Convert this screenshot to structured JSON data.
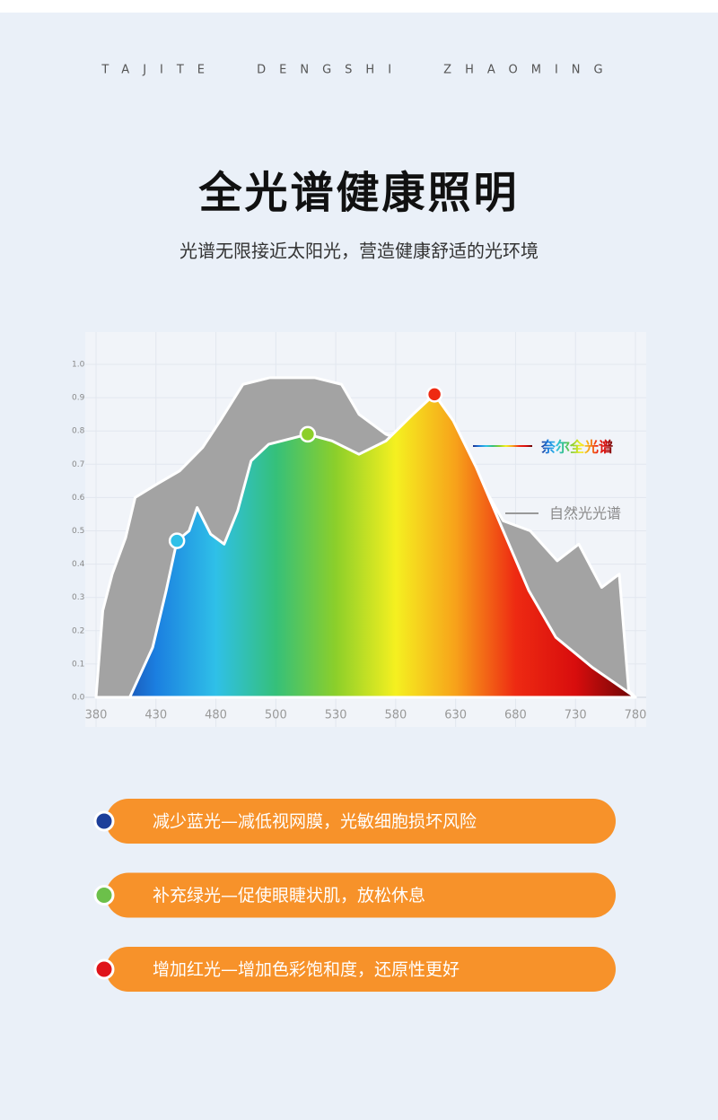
{
  "header": {
    "tagline": "TAJITE DENGSHI ZHAOMING",
    "title": "全光谱健康照明",
    "subtitle": "光谱无限接近太阳光，营造健康舒适的光环境"
  },
  "chart_data": {
    "type": "area",
    "xlim": [
      380,
      780
    ],
    "x_axis_labels": [
      380,
      430,
      480,
      500,
      530,
      580,
      630,
      680,
      730,
      780
    ],
    "ylim": [
      0,
      1
    ],
    "yticks": [
      {
        "value": 0,
        "label": "0.0"
      },
      0.1,
      0.2,
      0.3,
      0.4,
      0.5,
      0.6,
      0.7,
      0.8,
      0.9,
      {
        "value": 1,
        "label": "1.0"
      }
    ],
    "grid": true,
    "series": [
      {
        "name": "自然光光谱",
        "color": "#a3a3a3",
        "x": [
          380,
          385,
          392,
          402,
          409,
          425,
          442,
          459,
          472,
          489,
          509,
          542,
          562,
          575,
          595,
          622,
          655,
          682,
          702,
          722,
          738,
          755,
          768,
          775,
          780
        ],
        "values": [
          0,
          0.26,
          0.37,
          0.48,
          0.6,
          0.64,
          0.68,
          0.75,
          0.83,
          0.94,
          0.96,
          0.96,
          0.94,
          0.85,
          0.79,
          0.75,
          0.72,
          0.53,
          0.5,
          0.41,
          0.46,
          0.33,
          0.37,
          0.02,
          0
        ]
      },
      {
        "name": "奈尔全光谱",
        "colors": [
          "#1a2f8f",
          "#1b7fe0",
          "#2fc0e8",
          "#35c07a",
          "#8ccf2a",
          "#f5f020",
          "#f7a21a",
          "#ee2a12",
          "#d80d0d",
          "#6a0606"
        ],
        "x": [
          405,
          422,
          432,
          440,
          449,
          455,
          465,
          475,
          485,
          495,
          508,
          537,
          555,
          575,
          595,
          615,
          631,
          645,
          662,
          682,
          701,
          721,
          748,
          780
        ],
        "values": [
          0,
          0.15,
          0.32,
          0.47,
          0.5,
          0.57,
          0.49,
          0.46,
          0.56,
          0.71,
          0.76,
          0.79,
          0.77,
          0.73,
          0.77,
          0.85,
          0.91,
          0.83,
          0.69,
          0.5,
          0.32,
          0.18,
          0.09,
          0
        ]
      }
    ]
  },
  "features": [
    {
      "text": "减少蓝光—减低视网膜，光敏细胞损坏风险",
      "dot_color": "#1d3f9a"
    },
    {
      "text": "补充绿光—促使眼睫状肌，放松休息",
      "dot_color": "#6cc04a"
    },
    {
      "text": "增加红光—增加色彩饱和度，还原性更好",
      "dot_color": "#e0141a"
    }
  ]
}
